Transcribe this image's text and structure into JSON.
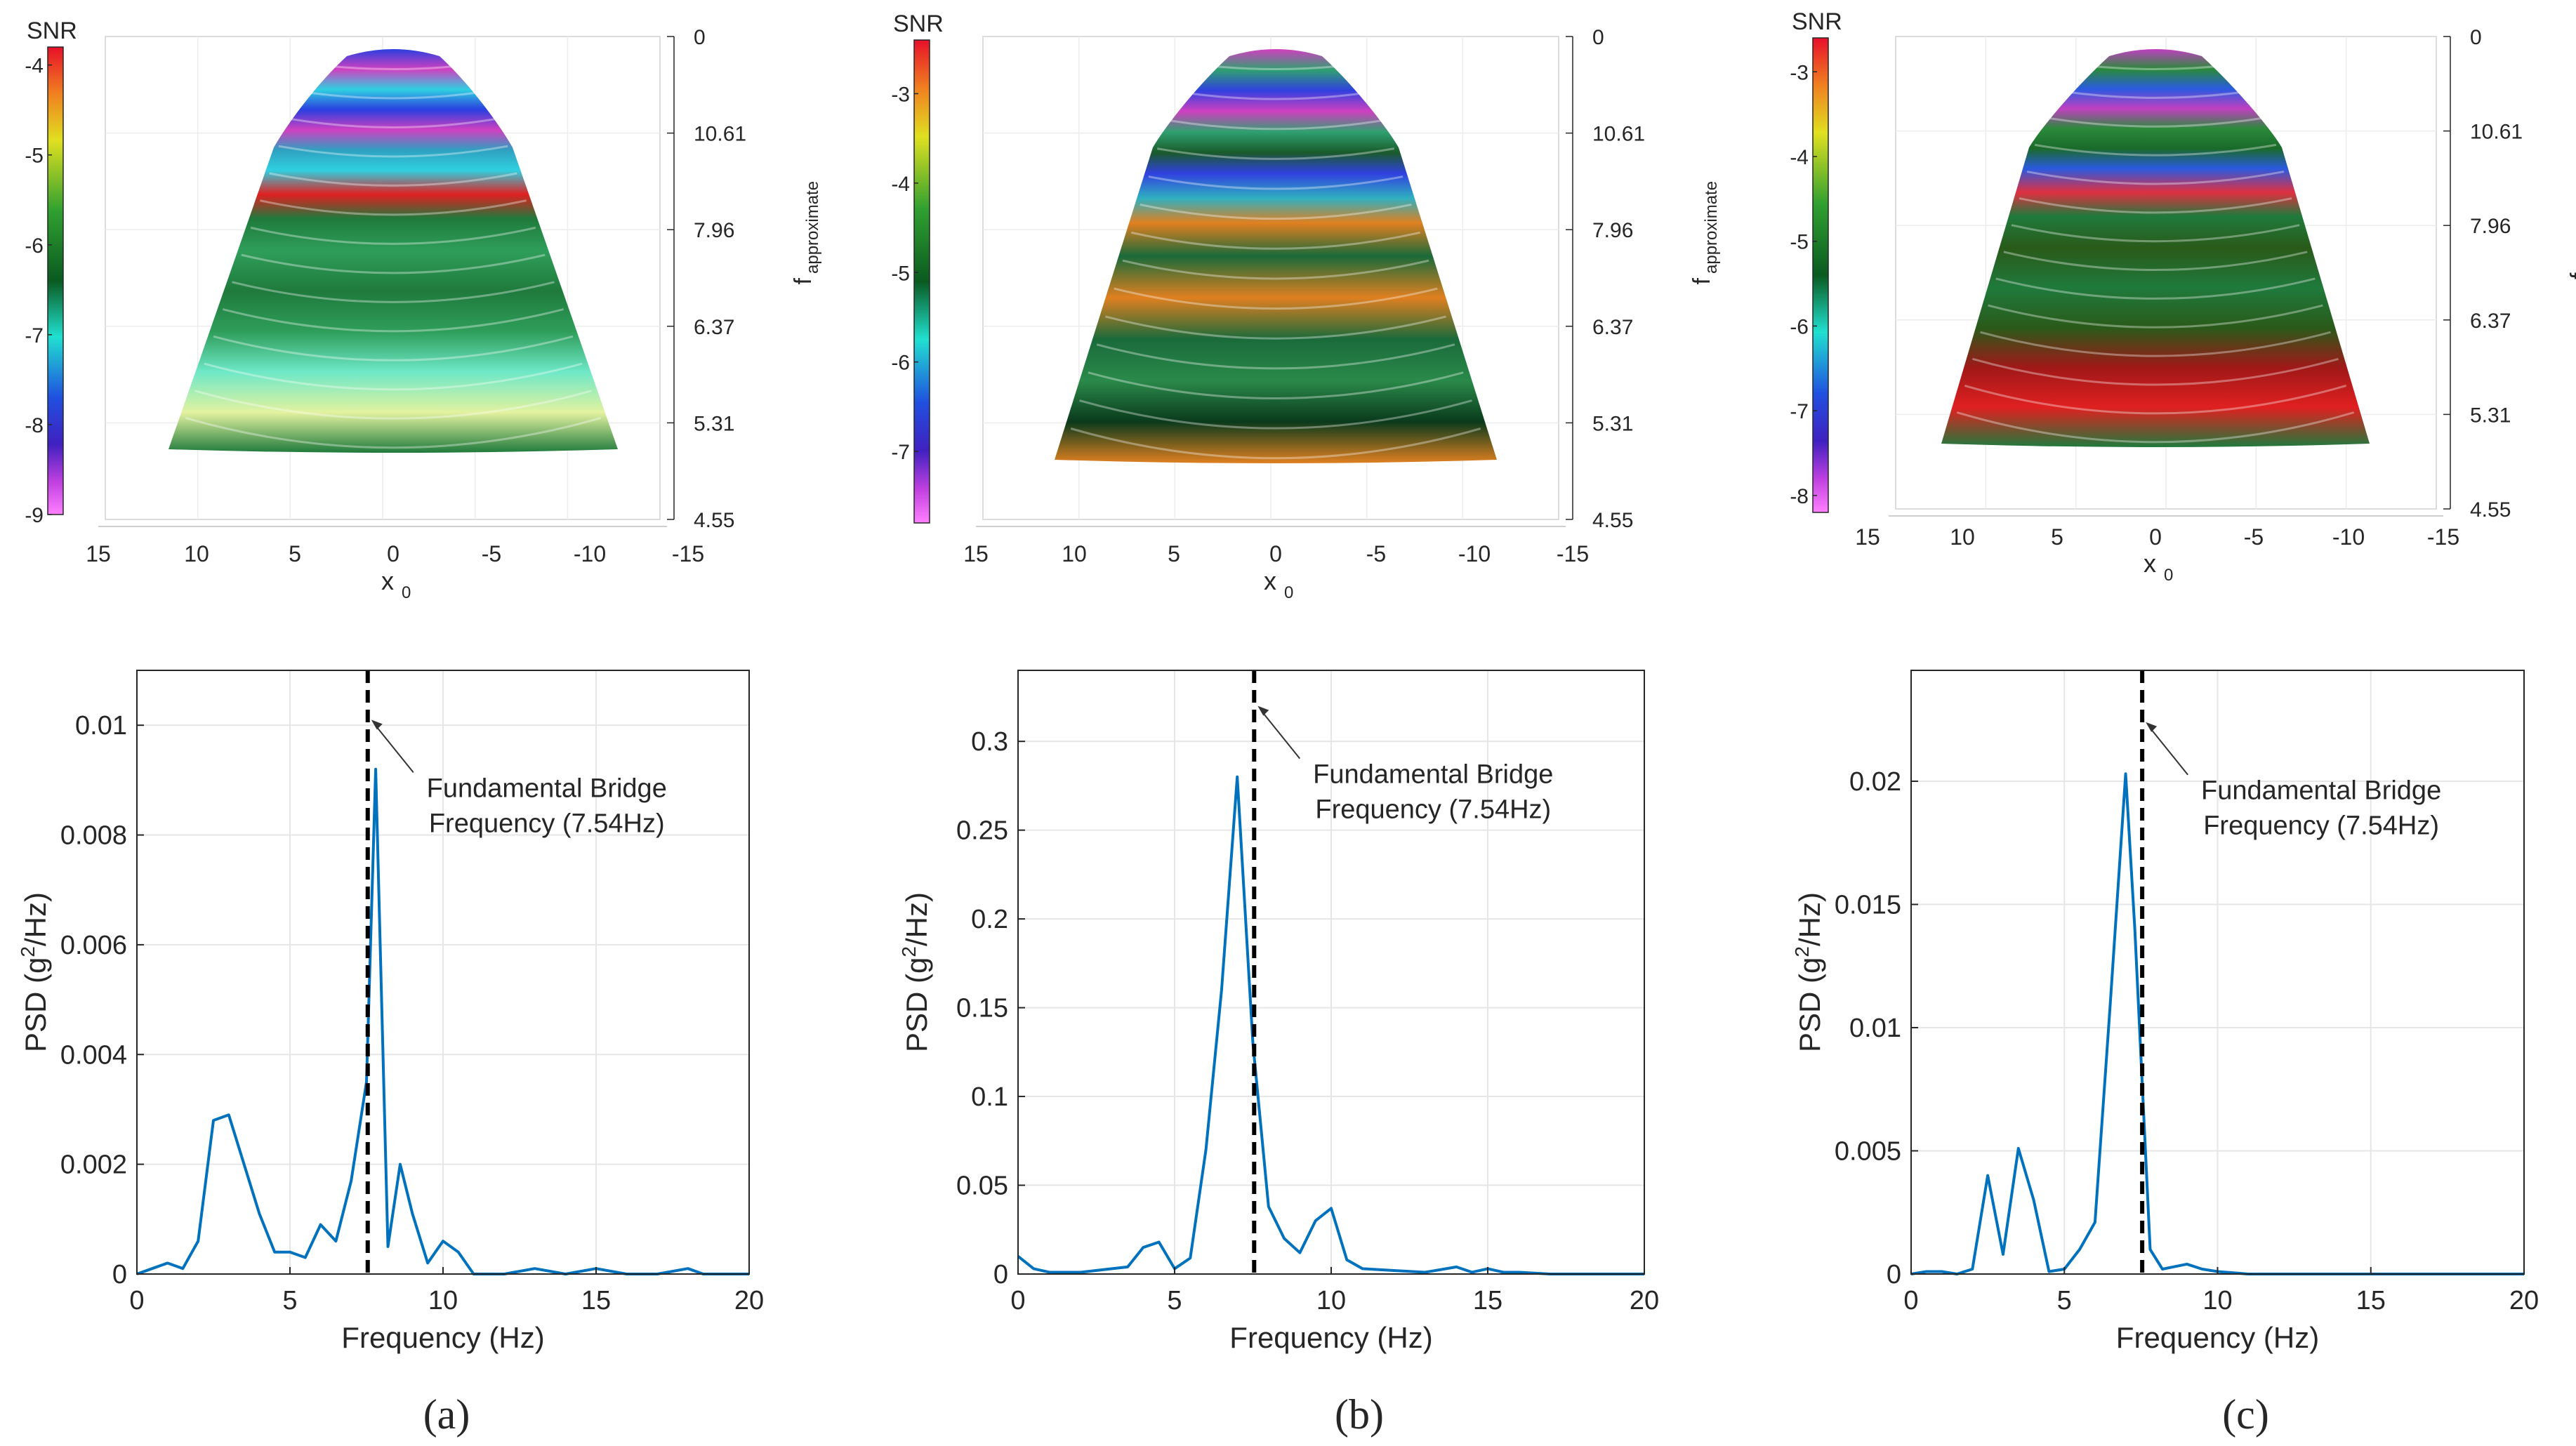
{
  "common": {
    "x_axis_3d_label": "x",
    "x_axis_3d_sub": "0",
    "f_axis_label": "f",
    "f_axis_sub": "approximate",
    "x_ticks_3d": [
      "15",
      "10",
      "5",
      "0",
      "-5",
      "-10",
      "-15"
    ],
    "f_ticks": [
      "0",
      "10.61",
      "7.96",
      "6.37",
      "5.31",
      "4.55"
    ],
    "colorbar_title": "SNR",
    "annotation_line1": "Fundamental Bridge",
    "annotation_line2": "Frequency (7.54Hz)",
    "psd_xlabel": "Frequency (Hz)",
    "psd_ylabel_main": "PSD (g",
    "psd_ylabel_sup": "2",
    "psd_ylabel_tail": "/Hz)",
    "fundamental_hz": 7.54,
    "colors": {
      "line": "#0072BD",
      "grid": "#e6e6e6",
      "axis": "#262626"
    }
  },
  "panels": [
    {
      "label": "(a)",
      "label_letter": "a",
      "colorbar": {
        "min": -9,
        "max": -3.8,
        "ticks": [
          "-4",
          "-5",
          "-6",
          "-7",
          "-8",
          "-9"
        ]
      },
      "surface_palette": [
        "#e3f2a0",
        "#6ee8c8",
        "#2f9e5a",
        "#1f7a3c",
        "#e02020",
        "#2fd0e0",
        "#2a3fe0",
        "#d040c0",
        "#2fa0c0"
      ]
    },
    {
      "label": "(b)",
      "label_letter": "b",
      "colorbar": {
        "min": -7.8,
        "max": -2.4,
        "ticks": [
          "-3",
          "-4",
          "-5",
          "-6",
          "-7"
        ]
      },
      "surface_palette": [
        "#0a3a1c",
        "#2a8a4a",
        "#1a6a3a",
        "#e08020",
        "#2fb0c0",
        "#3040e0",
        "#d040c0",
        "#2fa070",
        "#1a5a2a"
      ]
    },
    {
      "label": "(c)",
      "label_letter": "c",
      "colorbar": {
        "min": -8.2,
        "max": -2.6,
        "ticks": [
          "-3",
          "-4",
          "-5",
          "-6",
          "-7",
          "-8"
        ]
      },
      "surface_palette": [
        "#e02020",
        "#a01818",
        "#2a5a1a",
        "#1f7a3c",
        "#e03040",
        "#2a5ae0",
        "#c040c0",
        "#2a8a3a",
        "#1a6a2a"
      ]
    }
  ],
  "chart_data": [
    {
      "type": "line",
      "title": "",
      "xlabel": "Frequency (Hz)",
      "ylabel": "PSD (g^2/Hz)",
      "xlim": [
        0,
        20
      ],
      "ylim": [
        0,
        0.011
      ],
      "xticks": [
        "0",
        "5",
        "10",
        "15",
        "20"
      ],
      "yticks": [
        {
          "v": 0,
          "t": "0"
        },
        {
          "v": 0.002,
          "t": "0.002"
        },
        {
          "v": 0.004,
          "t": "0.004"
        },
        {
          "v": 0.006,
          "t": "0.006"
        },
        {
          "v": 0.008,
          "t": "0.008"
        },
        {
          "v": 0.01,
          "t": "0.01"
        }
      ],
      "grid": true,
      "annotation": {
        "text": "Fundamental Bridge Frequency (7.54Hz)",
        "x": 7.54,
        "y": 0.0101
      },
      "vline_x": 7.54,
      "x": [
        0,
        0.5,
        1,
        1.5,
        2,
        2.5,
        3,
        3.5,
        4,
        4.5,
        5,
        5.5,
        6,
        6.5,
        7,
        7.5,
        7.8,
        8.2,
        8.6,
        9,
        9.5,
        10,
        10.5,
        11,
        11.5,
        12,
        13,
        14,
        15,
        16,
        17,
        18,
        18.5,
        19,
        20
      ],
      "y": [
        0,
        0.0001,
        0.0002,
        0.0001,
        0.0006,
        0.0028,
        0.0029,
        0.002,
        0.0011,
        0.0004,
        0.0004,
        0.0003,
        0.0009,
        0.0006,
        0.0017,
        0.0035,
        0.0092,
        0.0005,
        0.002,
        0.0011,
        0.0002,
        0.0006,
        0.0004,
        0,
        0,
        0,
        0.0001,
        0,
        0.0001,
        0,
        0,
        0.0001,
        0,
        0,
        0
      ]
    },
    {
      "type": "line",
      "title": "",
      "xlabel": "Frequency (Hz)",
      "ylabel": "PSD (g^2/Hz)",
      "xlim": [
        0,
        20
      ],
      "ylim": [
        0,
        0.34
      ],
      "xticks": [
        "0",
        "5",
        "10",
        "15",
        "20"
      ],
      "yticks": [
        {
          "v": 0,
          "t": "0"
        },
        {
          "v": 0.05,
          "t": "0.05"
        },
        {
          "v": 0.1,
          "t": "0.1"
        },
        {
          "v": 0.15,
          "t": "0.15"
        },
        {
          "v": 0.2,
          "t": "0.2"
        },
        {
          "v": 0.25,
          "t": "0.25"
        },
        {
          "v": 0.3,
          "t": "0.3"
        }
      ],
      "grid": true,
      "annotation": {
        "text": "Fundamental Bridge Frequency (7.54Hz)",
        "x": 7.54,
        "y": 0.32
      },
      "vline_x": 7.54,
      "x": [
        0,
        0.5,
        1,
        2,
        3,
        3.5,
        4,
        4.5,
        5,
        5.5,
        6,
        6.5,
        7,
        7.5,
        8,
        8.5,
        9,
        9.5,
        10,
        10.5,
        11,
        12,
        13,
        14,
        14.5,
        15,
        15.5,
        16,
        17,
        20
      ],
      "y": [
        0.01,
        0.003,
        0.001,
        0.001,
        0.003,
        0.004,
        0.015,
        0.018,
        0.003,
        0.009,
        0.07,
        0.16,
        0.28,
        0.13,
        0.038,
        0.02,
        0.012,
        0.03,
        0.037,
        0.008,
        0.003,
        0.002,
        0.001,
        0.004,
        0.001,
        0.003,
        0.001,
        0.001,
        0,
        0
      ]
    },
    {
      "type": "line",
      "title": "",
      "xlabel": "Frequency (Hz)",
      "ylabel": "PSD (g^2/Hz)",
      "xlim": [
        0,
        20
      ],
      "ylim": [
        0,
        0.0245
      ],
      "xticks": [
        "0",
        "5",
        "10",
        "15",
        "20"
      ],
      "yticks": [
        {
          "v": 0,
          "t": "0"
        },
        {
          "v": 0.005,
          "t": "0.005"
        },
        {
          "v": 0.01,
          "t": "0.01"
        },
        {
          "v": 0.015,
          "t": "0.015"
        },
        {
          "v": 0.02,
          "t": "0.02"
        }
      ],
      "grid": true,
      "annotation": {
        "text": "Fundamental Bridge Frequency (7.54Hz)",
        "x": 7.54,
        "y": 0.0224
      },
      "vline_x": 7.54,
      "x": [
        0,
        0.5,
        1,
        1.5,
        2,
        2.5,
        3,
        3.5,
        4,
        4.5,
        5,
        5.5,
        6,
        6.5,
        7,
        7.3,
        7.8,
        8.2,
        8.6,
        9,
        9.5,
        10,
        11,
        12,
        13,
        14,
        15,
        16,
        17,
        18,
        19,
        20
      ],
      "y": [
        0,
        0.0001,
        0.0001,
        0,
        0.0002,
        0.004,
        0.0008,
        0.0051,
        0.003,
        0.0001,
        0.0002,
        0.001,
        0.0021,
        0.011,
        0.0203,
        0.014,
        0.001,
        0.0002,
        0.0003,
        0.0004,
        0.0002,
        0.0001,
        0,
        0,
        0,
        0,
        0,
        0,
        0,
        0,
        0,
        0
      ]
    }
  ]
}
